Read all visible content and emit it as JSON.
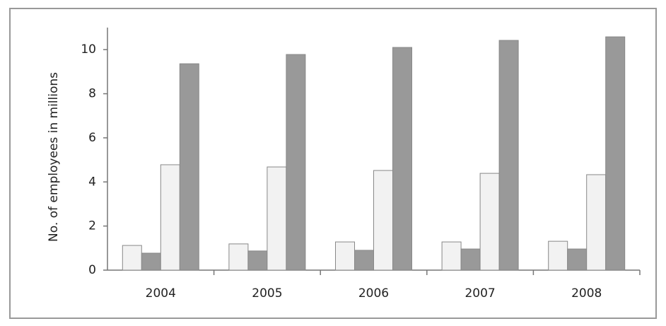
{
  "chart_data": {
    "type": "bar",
    "y_label": "No. of employees in millions",
    "categories": [
      "2004",
      "2005",
      "2006",
      "2007",
      "2008"
    ],
    "series": [
      {
        "color": "#f2f2f2",
        "values": [
          1.12,
          1.19,
          1.28,
          1.28,
          1.31
        ]
      },
      {
        "color": "#999999",
        "values": [
          0.77,
          0.87,
          0.9,
          0.96,
          0.96
        ]
      },
      {
        "color": "#f2f2f2",
        "values": [
          4.78,
          4.68,
          4.52,
          4.39,
          4.33
        ]
      },
      {
        "color": "#999999",
        "values": [
          9.36,
          9.78,
          10.1,
          10.42,
          10.58
        ]
      }
    ],
    "ylim": [
      0,
      11
    ],
    "yticks": [
      0,
      2,
      4,
      6,
      8,
      10
    ],
    "grid": false
  }
}
